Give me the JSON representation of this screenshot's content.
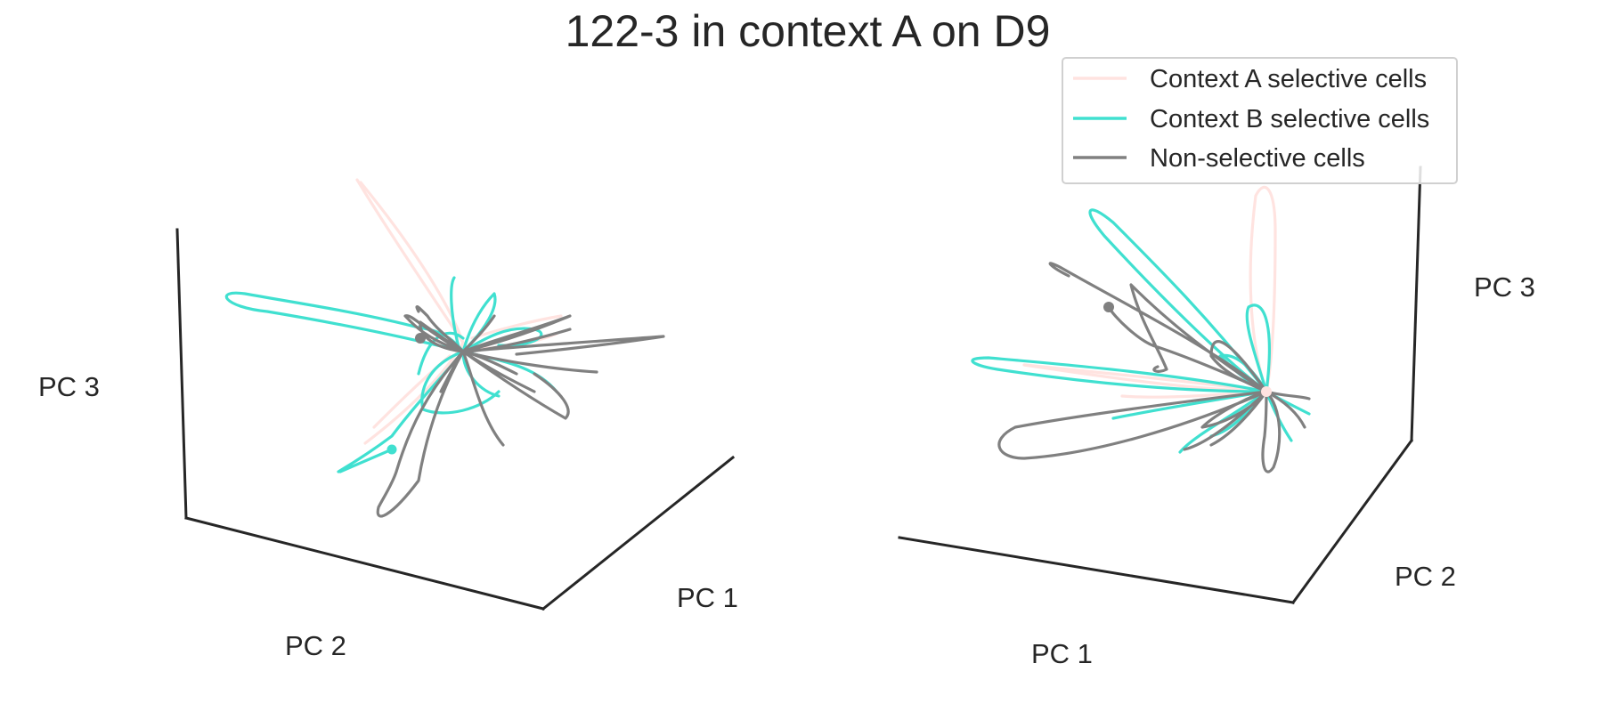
{
  "chart_data": {
    "type": "line",
    "title": "122-3 in context A on D9",
    "legend": {
      "position": "top-right",
      "entries": [
        {
          "name": "Context A selective cells",
          "color": "#ffe3e0"
        },
        {
          "name": "Context B selective cells",
          "color": "#40e0d0"
        },
        {
          "name": "Non-selective cells",
          "color": "#808080"
        }
      ]
    },
    "grid": false,
    "panels": [
      {
        "name": "left-view",
        "xlabel": "PC 1",
        "ylabel": "PC 2",
        "zlabel": "PC 3"
      },
      {
        "name": "right-view",
        "xlabel": "PC 1",
        "ylabel": "PC 2",
        "zlabel": "PC 3"
      }
    ],
    "series": [
      {
        "name": "Context A selective cells",
        "color": "#ffe3e0"
      },
      {
        "name": "Context B selective cells",
        "color": "#40e0d0"
      },
      {
        "name": "Non-selective cells",
        "color": "#808080"
      }
    ]
  }
}
